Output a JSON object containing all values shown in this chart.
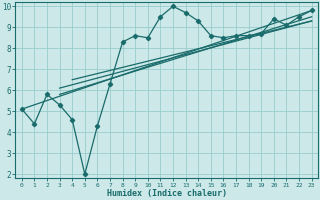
{
  "title": "",
  "xlabel": "Humidex (Indice chaleur)",
  "bg_color": "#cce8e8",
  "grid_color": "#99cccc",
  "line_color": "#1a6b6b",
  "xlim": [
    -0.5,
    23.5
  ],
  "ylim": [
    1.8,
    10.2
  ],
  "xticks": [
    0,
    1,
    2,
    3,
    4,
    5,
    6,
    7,
    8,
    9,
    10,
    11,
    12,
    13,
    14,
    15,
    16,
    17,
    18,
    19,
    20,
    21,
    22,
    23
  ],
  "yticks": [
    2,
    3,
    4,
    5,
    6,
    7,
    8,
    9,
    10
  ],
  "line1_x": [
    0,
    1,
    2,
    3,
    4,
    5,
    6,
    7,
    8,
    9,
    10,
    11,
    12,
    13,
    14,
    15,
    16,
    17,
    18,
    19,
    20,
    21,
    22,
    23
  ],
  "line1_y": [
    5.1,
    4.4,
    5.8,
    5.3,
    4.6,
    2.0,
    4.3,
    6.3,
    8.3,
    8.6,
    8.5,
    9.5,
    10.0,
    9.7,
    9.3,
    8.6,
    8.5,
    8.6,
    8.6,
    8.7,
    9.4,
    9.1,
    9.5,
    9.8
  ],
  "line2_x": [
    0,
    23
  ],
  "line2_y": [
    5.1,
    9.8
  ],
  "line3_x": [
    3,
    23
  ],
  "line3_y": [
    5.8,
    9.5
  ],
  "line4_x": [
    3,
    23
  ],
  "line4_y": [
    6.1,
    9.3
  ],
  "line5_x": [
    4,
    23
  ],
  "line5_y": [
    6.5,
    9.3
  ]
}
